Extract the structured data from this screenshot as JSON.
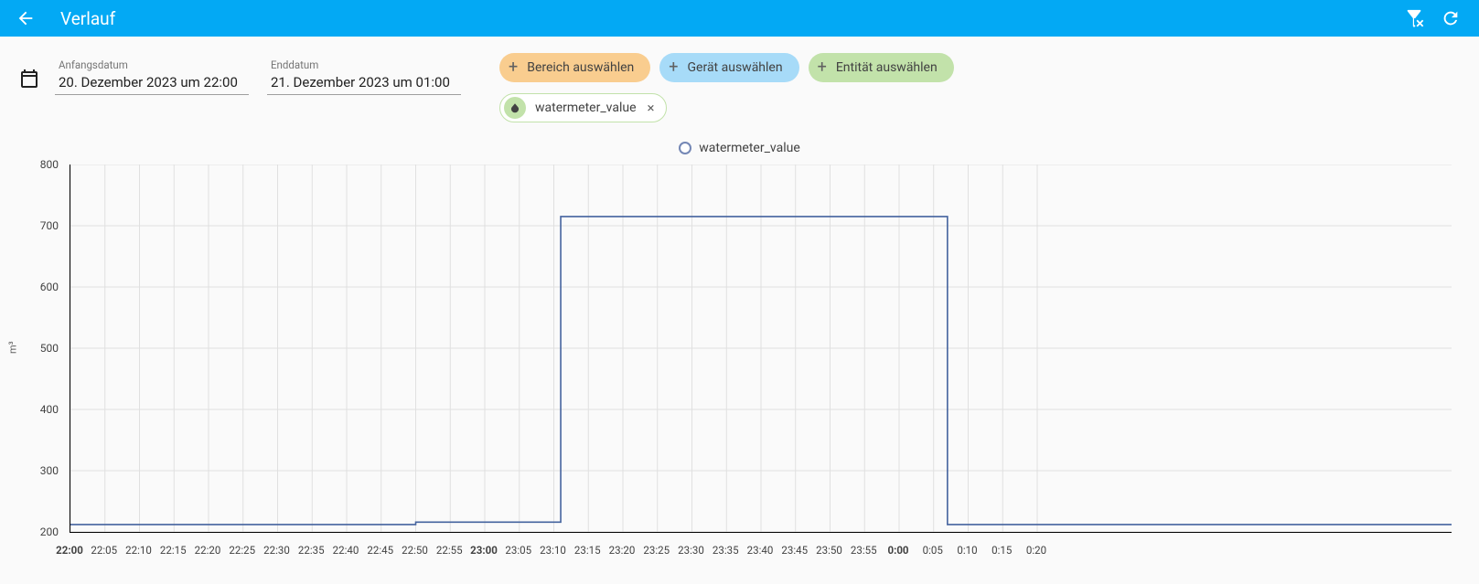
{
  "header": {
    "title": "Verlauf"
  },
  "date_range": {
    "start_label": "Anfangsdatum",
    "start_value": "20. Dezember 2023 um 22:00",
    "end_label": "Enddatum",
    "end_value": "21. Dezember 2023 um 01:00"
  },
  "selectors": {
    "area": "Bereich auswählen",
    "device": "Gerät auswählen",
    "entity": "Entität auswählen"
  },
  "selected_entity": {
    "name": "watermeter_value"
  },
  "legend": {
    "label": "watermeter_value",
    "color": "#7487b5"
  },
  "chart": {
    "type": "line-step",
    "series_color": "#44639e",
    "grid_color": "#e0e0e0",
    "axis_color": "#000000",
    "background_color": "#fafafa",
    "yaxis": {
      "title": "m³",
      "min": 200,
      "max": 800,
      "ticks": [
        200,
        300,
        400,
        500,
        600,
        700,
        800
      ]
    },
    "xaxis": {
      "min_minutes": 0,
      "max_minutes": 200,
      "ticks": [
        {
          "m": 0,
          "label": "22:00",
          "bold": true
        },
        {
          "m": 5,
          "label": "22:05"
        },
        {
          "m": 10,
          "label": "22:10"
        },
        {
          "m": 15,
          "label": "22:15"
        },
        {
          "m": 20,
          "label": "22:20"
        },
        {
          "m": 25,
          "label": "22:25"
        },
        {
          "m": 30,
          "label": "22:30"
        },
        {
          "m": 35,
          "label": "22:35"
        },
        {
          "m": 40,
          "label": "22:40"
        },
        {
          "m": 45,
          "label": "22:45"
        },
        {
          "m": 50,
          "label": "22:50"
        },
        {
          "m": 55,
          "label": "22:55"
        },
        {
          "m": 60,
          "label": "23:00",
          "bold": true
        },
        {
          "m": 65,
          "label": "23:05"
        },
        {
          "m": 70,
          "label": "23:10"
        },
        {
          "m": 75,
          "label": "23:15"
        },
        {
          "m": 80,
          "label": "23:20"
        },
        {
          "m": 85,
          "label": "23:25"
        },
        {
          "m": 90,
          "label": "23:30"
        },
        {
          "m": 95,
          "label": "23:35"
        },
        {
          "m": 100,
          "label": "23:40"
        },
        {
          "m": 105,
          "label": "23:45"
        },
        {
          "m": 110,
          "label": "23:50"
        },
        {
          "m": 115,
          "label": "23:55"
        },
        {
          "m": 120,
          "label": "0:00",
          "bold": true
        },
        {
          "m": 125,
          "label": "0:05"
        },
        {
          "m": 130,
          "label": "0:10"
        },
        {
          "m": 135,
          "label": "0:15"
        },
        {
          "m": 140,
          "label": "0:20"
        }
      ]
    },
    "series": [
      {
        "name": "watermeter_value",
        "color": "#44639e",
        "points": [
          {
            "m": 0,
            "v": 212
          },
          {
            "m": 50,
            "v": 212
          },
          {
            "m": 50,
            "v": 216
          },
          {
            "m": 71,
            "v": 216
          },
          {
            "m": 71,
            "v": 715
          },
          {
            "m": 127,
            "v": 715
          },
          {
            "m": 127,
            "v": 212
          },
          {
            "m": 200,
            "v": 212
          }
        ]
      }
    ]
  }
}
